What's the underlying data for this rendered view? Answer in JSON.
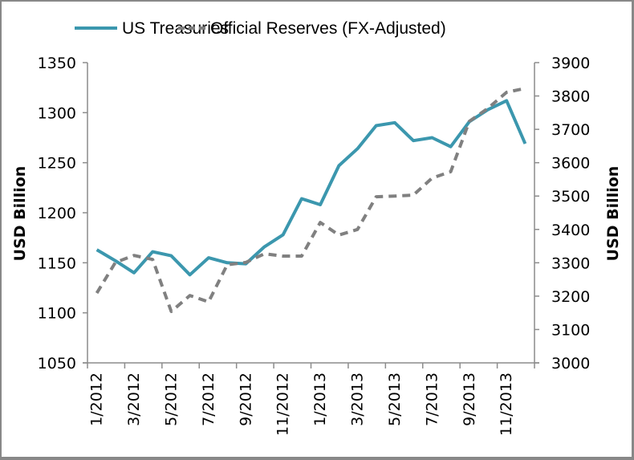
{
  "chart_data": {
    "type": "line",
    "title": "",
    "legend": {
      "placement": "top"
    },
    "x": [
      "1/2012",
      "2/2012",
      "3/2012",
      "4/2012",
      "5/2012",
      "6/2012",
      "7/2012",
      "8/2012",
      "9/2012",
      "10/2012",
      "11/2012",
      "12/2012",
      "1/2013",
      "2/2013",
      "3/2013",
      "4/2013",
      "5/2013",
      "6/2013",
      "7/2013",
      "8/2013",
      "9/2013",
      "10/2013",
      "11/2013",
      "12/2013"
    ],
    "x_tick_labels": [
      "1/2012",
      "3/2012",
      "5/2012",
      "7/2012",
      "9/2012",
      "11/2012",
      "1/2013",
      "3/2013",
      "5/2013",
      "7/2013",
      "9/2013",
      "11/2013"
    ],
    "y_left": {
      "label": "USD Billion",
      "ylim": [
        1050,
        1350
      ],
      "ticks": [
        "1050",
        "1100",
        "1150",
        "1200",
        "1250",
        "1300",
        "1350"
      ]
    },
    "y_right": {
      "label": "USD Billion",
      "ylim": [
        3000,
        3900
      ],
      "ticks": [
        "3000",
        "3100",
        "3200",
        "3300",
        "3400",
        "3500",
        "3600",
        "3700",
        "3800",
        "3900"
      ]
    },
    "grid": false,
    "series": [
      {
        "name": "US Treasuries",
        "axis": "left",
        "style": "solid",
        "color": "#3B97AE",
        "values": [
          1163,
          1152,
          1140,
          1161,
          1157,
          1138,
          1155,
          1150,
          1149,
          1166,
          1178,
          1214,
          1208,
          1247,
          1264,
          1287,
          1290,
          1272,
          1275,
          1266,
          1291,
          1303,
          1312,
          1269
        ]
      },
      {
        "name": "Official Reserves (FX-Adjusted)",
        "axis": "right",
        "style": "dashed",
        "color": "#808080",
        "values": [
          3209,
          3301,
          3322,
          3310,
          3154,
          3202,
          3183,
          3294,
          3301,
          3327,
          3320,
          3320,
          3421,
          3383,
          3400,
          3498,
          3500,
          3503,
          3554,
          3573,
          3724,
          3763,
          3811,
          3823
        ]
      }
    ]
  }
}
